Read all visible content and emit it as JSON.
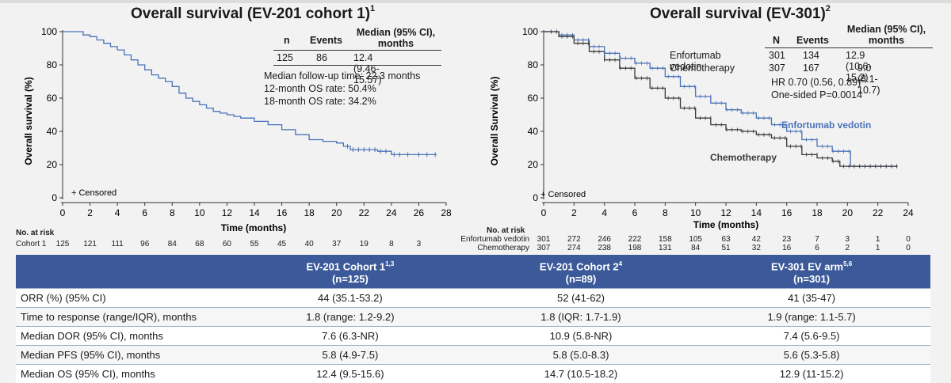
{
  "left_chart": {
    "title": "Overall survival (EV-201 cohort 1)",
    "title_ref": "1",
    "ylabel": "Overall survival (%)",
    "xlabel": "Time (months)",
    "censored_label": "+ Censored",
    "stats_table": {
      "headers": [
        "n",
        "Events",
        "Median (95% CI), months"
      ],
      "row": [
        "125",
        "86",
        "12.4 (9.46-15.57)"
      ]
    },
    "notes": [
      "Median follow-up time: 22.3 months",
      "12-month OS rate: 50.4%",
      "18-month OS rate: 34.2%"
    ],
    "risk": {
      "title": "No. at risk",
      "rows": [
        {
          "label": "Cohort 1",
          "values": [
            "125",
            "121",
            "111",
            "96",
            "84",
            "68",
            "60",
            "55",
            "45",
            "40",
            "37",
            "19",
            "8",
            "3"
          ]
        }
      ]
    }
  },
  "right_chart": {
    "title": "Overall survival (EV-301)",
    "title_ref": "2",
    "ylabel": "Overall Survival (%)",
    "xlabel": "Time (months)",
    "censored_label": "+ Censored",
    "stats_table": {
      "headers": [
        "N",
        "Events",
        "Median (95% CI), months"
      ],
      "rows": [
        [
          "Enfortumab vedotin",
          "301",
          "134",
          "12.9 (10.6-15.2)"
        ],
        [
          "Chemotherapy",
          "307",
          "167",
          "9.0 (8.1-10.7)"
        ]
      ]
    },
    "notes": [
      "HR 0.70 (0.56, 0.89)",
      "One-sided P=0.0014"
    ],
    "series_labels": [
      "Enfortumab vedotin",
      "Chemotherapy"
    ],
    "risk": {
      "title": "No. at risk",
      "rows": [
        {
          "label": "Enfortumab vedotin",
          "values": [
            "301",
            "272",
            "246",
            "222",
            "158",
            "105",
            "63",
            "42",
            "23",
            "7",
            "3",
            "1",
            "0"
          ]
        },
        {
          "label": "Chemotherapy",
          "values": [
            "307",
            "274",
            "238",
            "198",
            "131",
            "84",
            "51",
            "32",
            "16",
            "6",
            "2",
            "1",
            "0"
          ]
        }
      ]
    }
  },
  "summary_table": {
    "headers": [
      {
        "text": "",
        "ref": "",
        "sub": ""
      },
      {
        "text": "EV-201 Cohort 1",
        "ref": "1,3",
        "sub": "(n=125)"
      },
      {
        "text": "EV-201 Cohort 2",
        "ref": "4",
        "sub": "(n=89)"
      },
      {
        "text": "EV-301 EV arm",
        "ref": "5,6",
        "sub": "(n=301)"
      }
    ],
    "rows": [
      [
        "ORR (%) (95% CI)",
        "44 (35.1-53.2)",
        "52 (41-62)",
        "41 (35-47)"
      ],
      [
        "Time to response (range/IQR), months",
        "1.8 (range: 1.2-9.2)",
        "1.8 (IQR: 1.7-1.9)",
        "1.9 (range: 1.1-5.7)"
      ],
      [
        "Median DOR (95% CI), months",
        "7.6 (6.3-NR)",
        "10.9 (5.8-NR)",
        "7.4 (5.6-9.5)"
      ],
      [
        "Median PFS (95% CI), months",
        "5.8 (4.9-7.5)",
        "5.8 (5.0-8.3)",
        "5.6 (5.3-5.8)"
      ],
      [
        "Median OS (95% CI), months",
        "12.4 (9.5-15.6)",
        "14.7 (10.5-18.2)",
        "12.9 (11-15.2)"
      ]
    ]
  },
  "chart_data": [
    {
      "type": "line",
      "title": "Overall survival (EV-201 cohort 1)",
      "xlabel": "Time (months)",
      "ylabel": "Overall survival (%)",
      "xlim": [
        0,
        28
      ],
      "ylim": [
        0,
        100
      ],
      "xticks": [
        0,
        2,
        4,
        6,
        8,
        10,
        12,
        14,
        16,
        18,
        20,
        22,
        24,
        26,
        28
      ],
      "yticks": [
        0,
        20,
        40,
        60,
        80,
        100
      ],
      "series": [
        {
          "color": "#4a72b8",
          "x": [
            0,
            0.8,
            1.5,
            2,
            2.5,
            3,
            3.5,
            4,
            4.5,
            5,
            5.5,
            6,
            6.5,
            7,
            7.5,
            8,
            8.5,
            9,
            9.5,
            10,
            10.5,
            11,
            11.5,
            12,
            12.5,
            13,
            14,
            15,
            16,
            17,
            18,
            19,
            20,
            20.5,
            21,
            22,
            23,
            24,
            25,
            26,
            27.3
          ],
          "y": [
            100,
            100,
            98,
            97,
            95,
            93,
            91,
            89,
            86,
            83,
            80,
            77,
            74,
            72,
            70,
            67,
            63,
            60,
            58,
            56,
            54,
            52,
            51,
            50,
            49,
            48,
            46,
            44,
            41,
            38,
            35,
            34,
            33,
            31,
            29,
            29,
            28,
            26,
            26,
            26,
            26
          ]
        }
      ],
      "censor_x": [
        20.8,
        21.2,
        21.6,
        22,
        22.4,
        22.8,
        23.2,
        23.6,
        24.2,
        24.6,
        25.2,
        26,
        26.6,
        27.2
      ]
    },
    {
      "type": "line",
      "title": "Overall survival (EV-301)",
      "xlabel": "Time (months)",
      "ylabel": "Overall Survival (%)",
      "xlim": [
        0,
        24
      ],
      "ylim": [
        0,
        100
      ],
      "xticks": [
        0,
        2,
        4,
        6,
        8,
        10,
        12,
        14,
        16,
        18,
        20,
        22,
        24
      ],
      "yticks": [
        0,
        20,
        40,
        60,
        80,
        100
      ],
      "series": [
        {
          "name": "Enfortumab vedotin",
          "color": "#4a72b8",
          "x": [
            0,
            1,
            2,
            3,
            4,
            5,
            6,
            7,
            8,
            9,
            10,
            11,
            12,
            13,
            14,
            15,
            16,
            17,
            18,
            19,
            20,
            20.2,
            21,
            22,
            23.3
          ],
          "y": [
            100,
            98,
            95,
            91,
            87,
            84,
            81,
            78,
            73,
            67,
            61,
            57,
            53,
            51,
            48,
            44,
            40,
            35,
            31,
            28,
            28,
            19,
            19,
            19,
            19
          ]
        },
        {
          "name": "Chemotherapy",
          "color": "#3a3a3a",
          "x": [
            0,
            1,
            2,
            3,
            4,
            5,
            6,
            7,
            8,
            9,
            10,
            11,
            12,
            13,
            14,
            15,
            16,
            17,
            18,
            19,
            19.5,
            20,
            21,
            22,
            23.3
          ],
          "y": [
            100,
            97,
            93,
            88,
            83,
            78,
            72,
            66,
            60,
            54,
            48,
            44,
            41,
            40,
            38,
            36,
            31,
            26,
            24,
            22,
            19,
            19,
            19,
            19,
            19
          ]
        }
      ]
    }
  ]
}
